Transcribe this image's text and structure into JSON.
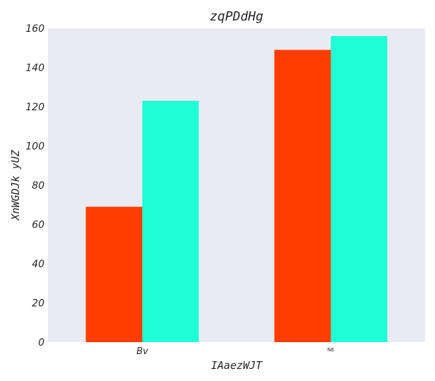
{
  "chart_data": {
    "type": "bar",
    "title": "zqPDdHg",
    "xlabel": "IAaezWJT",
    "ylabel": "XnWGDJk yUZ",
    "categories": [
      "Bv",
      "NE"
    ],
    "series": [
      {
        "color": "#ff3d00",
        "values": [
          69,
          149
        ]
      },
      {
        "color": "#1effd6",
        "values": [
          123,
          156
        ]
      }
    ],
    "ylim": [
      0,
      160
    ],
    "yticks": [
      0,
      20,
      40,
      60,
      80,
      100,
      120,
      140,
      160
    ],
    "grid": false,
    "background": "#eaeaf2"
  }
}
